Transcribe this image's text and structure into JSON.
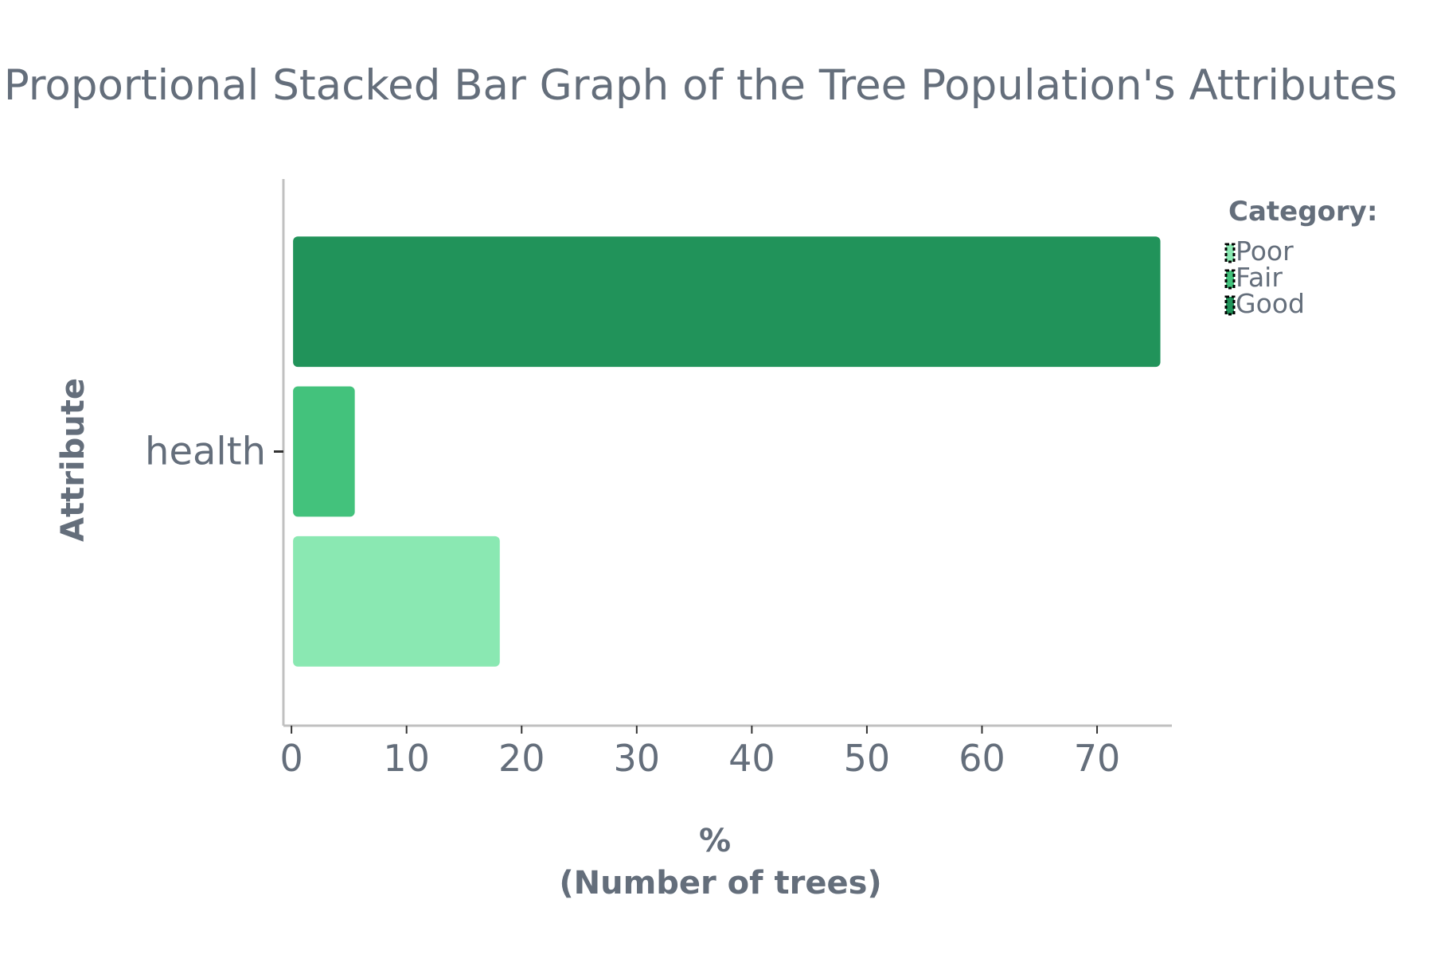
{
  "chart_data": {
    "type": "bar",
    "orientation": "horizontal",
    "title": "Proportional Stacked Bar Graph of the Tree Population's Attributes",
    "xlabel_line1": "%",
    "xlabel_line2": "(Number of trees)",
    "ylabel": "Attribute",
    "categories": [
      "health"
    ],
    "series": [
      {
        "name": "Good",
        "values": [
          75.5
        ],
        "color": "#21935a"
      },
      {
        "name": "Fair",
        "values": [
          5.5
        ],
        "color": "#43c27c"
      },
      {
        "name": "Poor",
        "values": [
          18.1
        ],
        "color": "#8ae8b2"
      }
    ],
    "xlim": [
      -0.7,
      76.5
    ],
    "x_ticks": [
      0,
      10,
      20,
      30,
      40,
      50,
      60,
      70
    ],
    "legend": {
      "title": "Category:",
      "position": "right",
      "entries": [
        "Poor",
        "Fair",
        "Good"
      ]
    },
    "grid": false,
    "colors": {
      "text": "#646e7b",
      "axis": "#c0c0c0",
      "tick": "#333333"
    }
  }
}
